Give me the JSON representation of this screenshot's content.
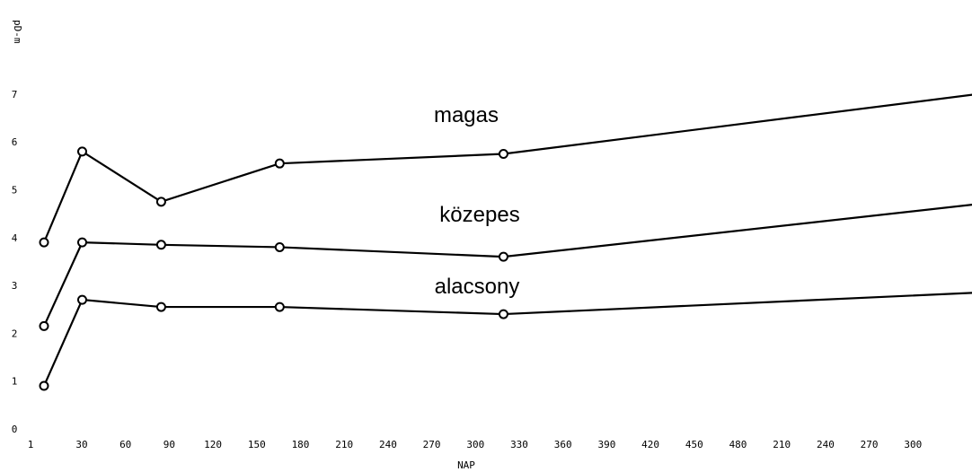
{
  "chart_data": {
    "type": "line",
    "ylabel": "pD-m",
    "xlabel": "NAP",
    "x_tick_labels": [
      "1",
      "30",
      "60",
      "90",
      "120",
      "150",
      "180",
      "210",
      "240",
      "270",
      "300",
      "330",
      "360",
      "390",
      "420",
      "450",
      "480",
      "210",
      "240",
      "270",
      "300"
    ],
    "y_tick_labels": [
      "0",
      "1",
      "2",
      "3",
      "4",
      "5",
      "6",
      "7"
    ],
    "ylim": [
      0,
      7.5
    ],
    "grid": false,
    "series": [
      {
        "name": "magas",
        "x": [
          1,
          30,
          90,
          180,
          350,
          710
        ],
        "values": [
          3.9,
          5.8,
          4.75,
          5.55,
          5.75,
          7.0
        ]
      },
      {
        "name": "közepes",
        "x": [
          1,
          30,
          90,
          180,
          350,
          710
        ],
        "values": [
          2.15,
          3.9,
          3.85,
          3.8,
          3.6,
          4.7
        ]
      },
      {
        "name": "alacsony",
        "x": [
          1,
          30,
          90,
          180,
          350,
          710
        ],
        "values": [
          0.9,
          2.7,
          2.55,
          2.55,
          2.4,
          2.85
        ]
      }
    ]
  }
}
